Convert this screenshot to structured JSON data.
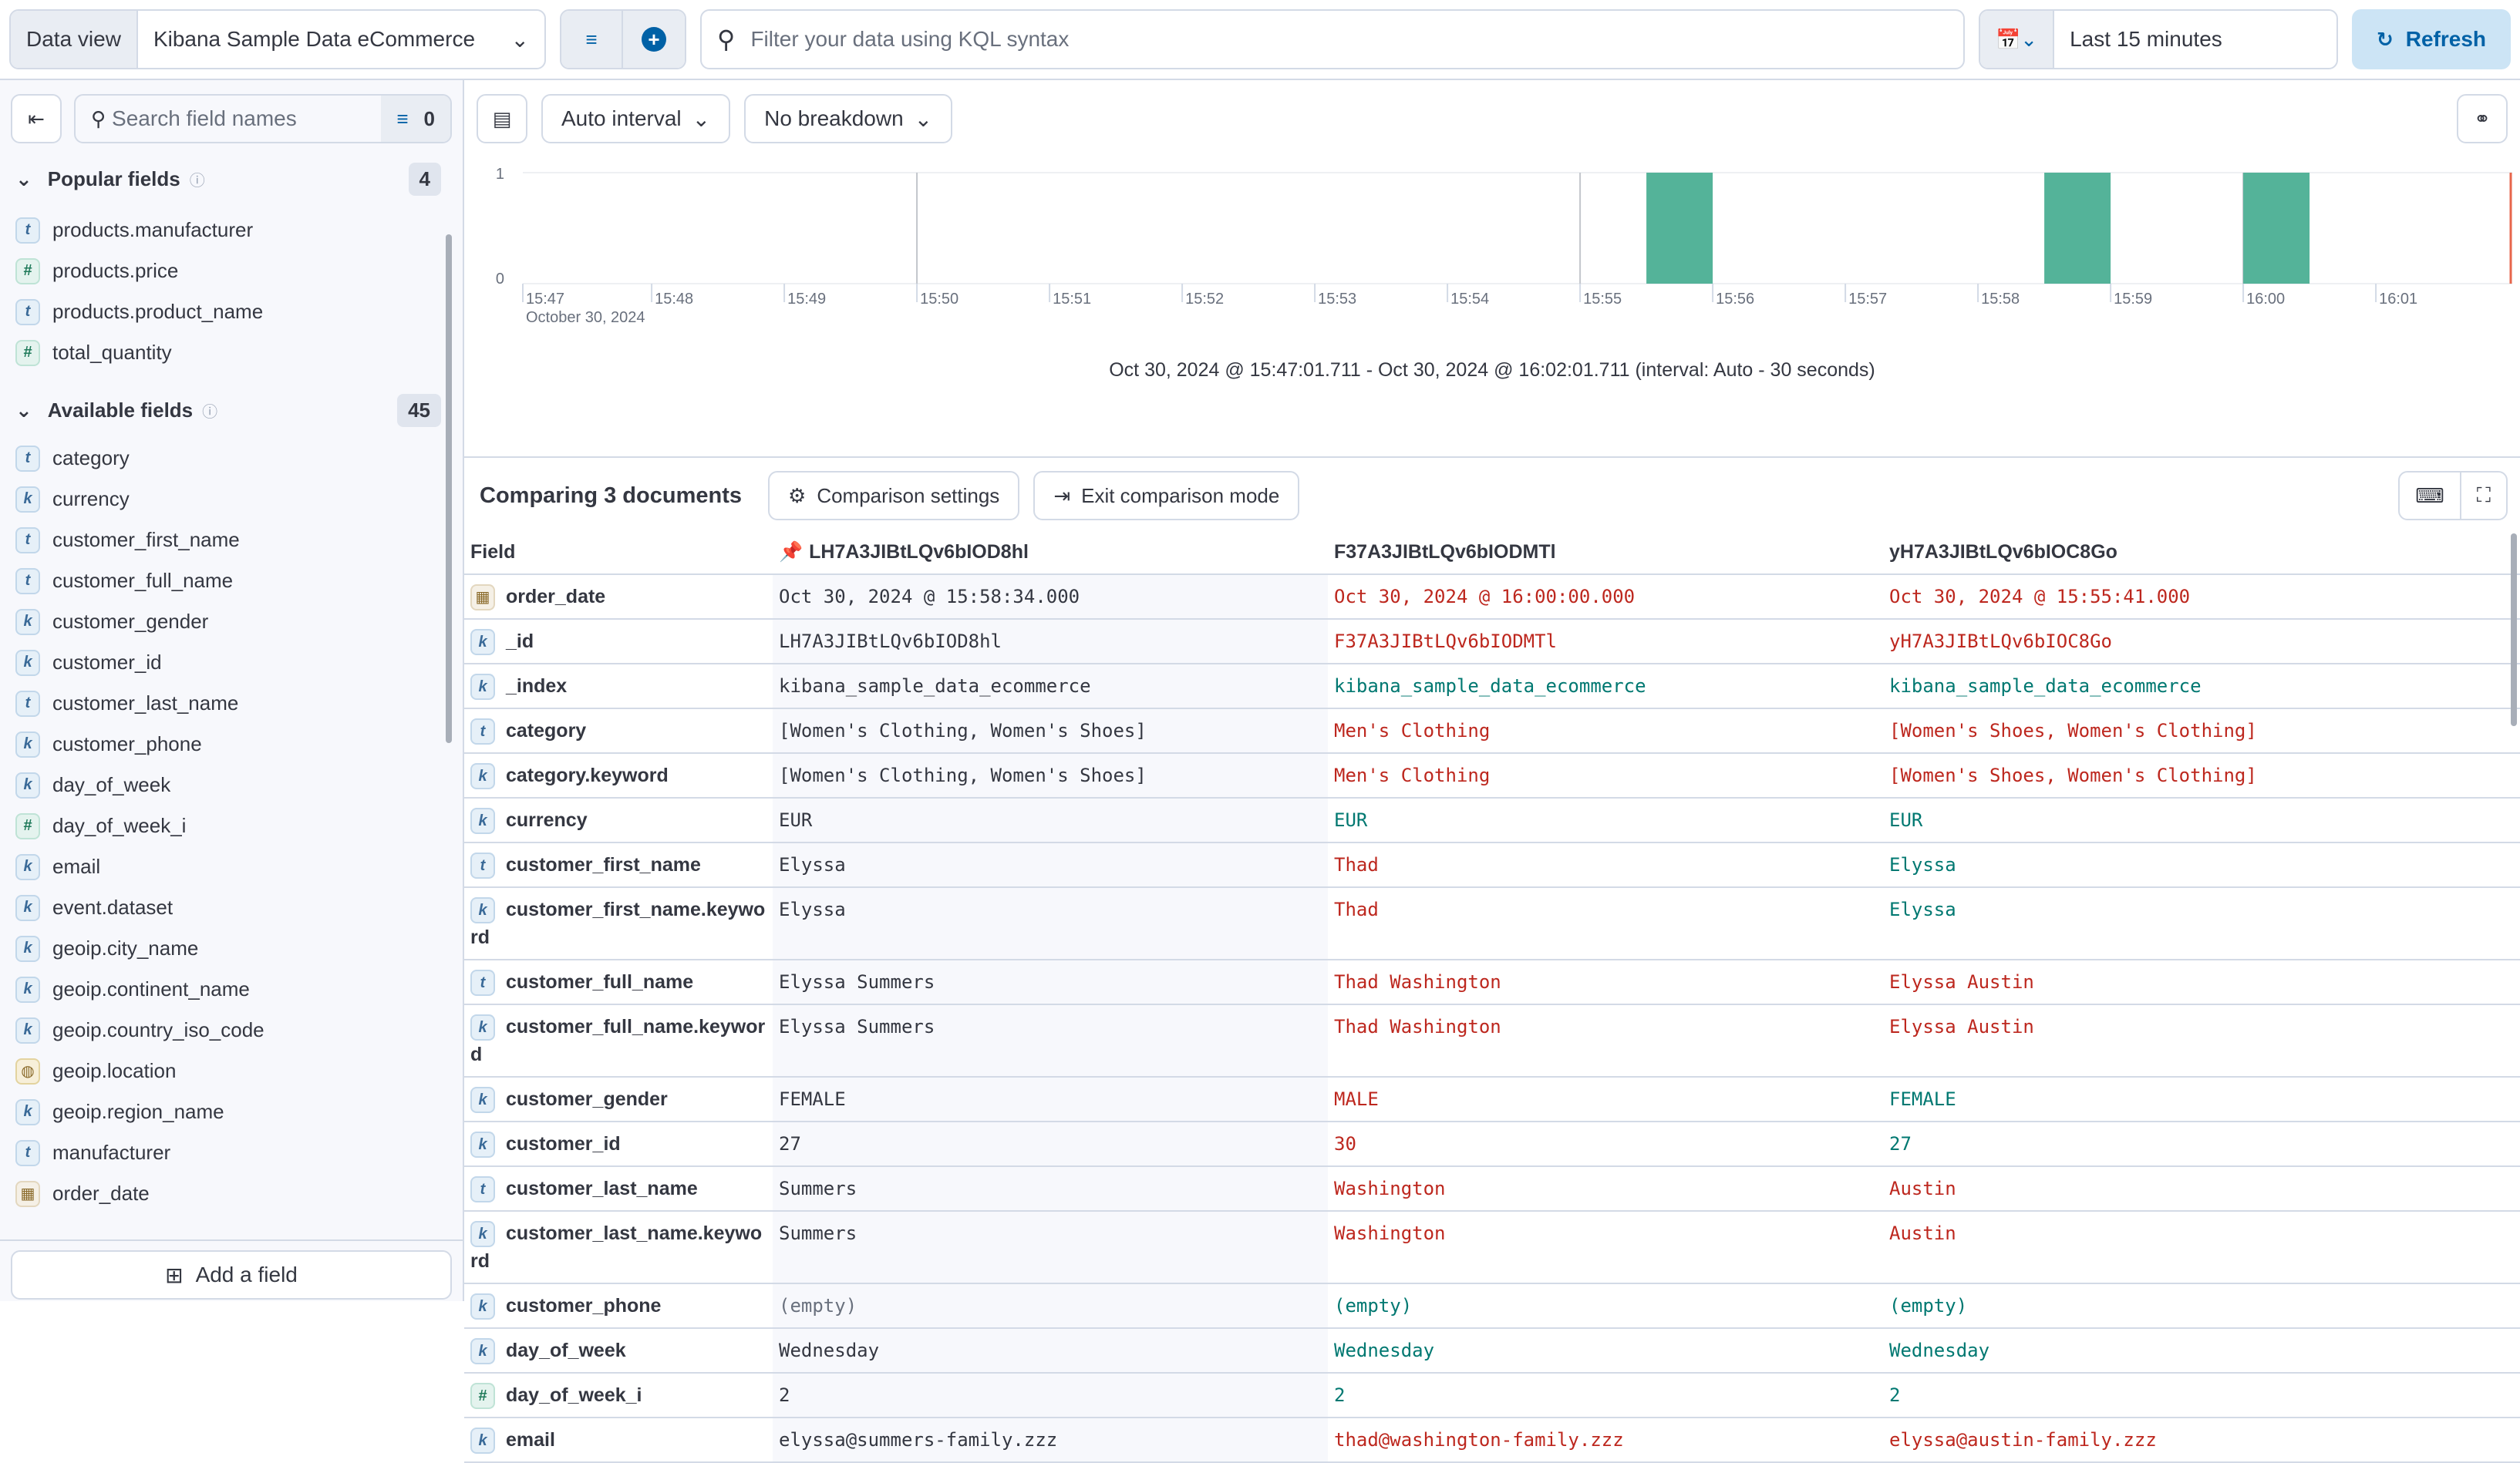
{
  "topbar": {
    "data_view_label": "Data view",
    "data_view_value": "Kibana Sample Data eCommerce",
    "query_placeholder": "Filter your data using KQL syntax",
    "time_range": "Last 15 minutes",
    "refresh_label": "Refresh",
    "accent": "#0061a6"
  },
  "sidebar": {
    "search_placeholder": "Search field names",
    "filter_count": "0",
    "popular": {
      "title": "Popular fields",
      "count": "4",
      "items": [
        {
          "type": "t",
          "name": "products.manufacturer"
        },
        {
          "type": "n",
          "name": "products.price"
        },
        {
          "type": "t",
          "name": "products.product_name"
        },
        {
          "type": "n",
          "name": "total_quantity"
        }
      ]
    },
    "available": {
      "title": "Available fields",
      "count": "45",
      "items": [
        {
          "type": "t",
          "name": "category"
        },
        {
          "type": "k",
          "name": "currency"
        },
        {
          "type": "t",
          "name": "customer_first_name"
        },
        {
          "type": "t",
          "name": "customer_full_name"
        },
        {
          "type": "k",
          "name": "customer_gender"
        },
        {
          "type": "k",
          "name": "customer_id"
        },
        {
          "type": "t",
          "name": "customer_last_name"
        },
        {
          "type": "k",
          "name": "customer_phone"
        },
        {
          "type": "k",
          "name": "day_of_week"
        },
        {
          "type": "n",
          "name": "day_of_week_i"
        },
        {
          "type": "k",
          "name": "email"
        },
        {
          "type": "k",
          "name": "event.dataset"
        },
        {
          "type": "k",
          "name": "geoip.city_name"
        },
        {
          "type": "k",
          "name": "geoip.continent_name"
        },
        {
          "type": "k",
          "name": "geoip.country_iso_code"
        },
        {
          "type": "g",
          "name": "geoip.location"
        },
        {
          "type": "k",
          "name": "geoip.region_name"
        },
        {
          "type": "t",
          "name": "manufacturer"
        },
        {
          "type": "d",
          "name": "order_date"
        }
      ]
    },
    "add_field_label": "Add a field"
  },
  "chart_toolbar": {
    "interval": "Auto interval",
    "breakdown": "No breakdown"
  },
  "chart_data": {
    "type": "bar",
    "x_range": [
      "15:47:01.711",
      "16:02:01.711"
    ],
    "ylim": [
      0,
      1
    ],
    "y_ticks": [
      "0",
      "1"
    ],
    "x_ticks": [
      "15:47",
      "15:48",
      "15:49",
      "15:50",
      "15:51",
      "15:52",
      "15:53",
      "15:54",
      "15:55",
      "15:56",
      "15:57",
      "15:58",
      "15:59",
      "16:00",
      "16:01"
    ],
    "x_sublabel": "October 30, 2024",
    "interval_seconds": 30,
    "bars": [
      {
        "x": "15:55:30",
        "value": 1
      },
      {
        "x": "15:58:30",
        "value": 1
      },
      {
        "x": "16:00:00",
        "value": 1
      }
    ],
    "bar_color": "#54b399",
    "now_marker_color": "#e7664c",
    "caption": "Oct 30, 2024 @ 15:47:01.711 - Oct 30, 2024 @ 16:02:01.711 (interval: Auto - 30 seconds)"
  },
  "compare": {
    "title": "Comparing 3 documents",
    "settings_label": "Comparison settings",
    "exit_label": "Exit comparison mode",
    "headers": [
      "Field",
      "LH7A3JIBtLQv6bIOD8hl",
      "F37A3JIBtLQv6bIODMTl",
      "yH7A3JIBtLQv6bIOC8Go"
    ],
    "rows": [
      {
        "type": "d",
        "field": "order_date",
        "v": [
          "Oct 30, 2024 @ 15:58:34.000",
          "Oct 30, 2024 @ 16:00:00.000",
          "Oct 30, 2024 @ 15:55:41.000"
        ],
        "s": [
          "red",
          "red"
        ]
      },
      {
        "type": "k",
        "field": "_id",
        "v": [
          "LH7A3JIBtLQv6bIOD8hl",
          "F37A3JIBtLQv6bIODMTl",
          "yH7A3JIBtLQv6bIOC8Go"
        ],
        "s": [
          "red",
          "red"
        ]
      },
      {
        "type": "k",
        "field": "_index",
        "v": [
          "kibana_sample_data_ecommerce",
          "kibana_sample_data_ecommerce",
          "kibana_sample_data_ecommerce"
        ],
        "s": [
          "grn",
          "grn"
        ]
      },
      {
        "type": "t",
        "field": "category",
        "v": [
          "[Women's Clothing, Women's Shoes]",
          "Men's Clothing",
          "[Women's Shoes, Women's Clothing]"
        ],
        "s": [
          "red",
          "red"
        ]
      },
      {
        "type": "k",
        "field": "category.keyword",
        "v": [
          "[Women's Clothing, Women's Shoes]",
          "Men's Clothing",
          "[Women's Shoes, Women's Clothing]"
        ],
        "s": [
          "red",
          "red"
        ]
      },
      {
        "type": "k",
        "field": "currency",
        "v": [
          "EUR",
          "EUR",
          "EUR"
        ],
        "s": [
          "grn",
          "grn"
        ]
      },
      {
        "type": "t",
        "field": "customer_first_name",
        "v": [
          "Elyssa",
          "Thad",
          "Elyssa"
        ],
        "s": [
          "red",
          "grn"
        ]
      },
      {
        "type": "k",
        "field": "customer_first_name.keyword",
        "v": [
          "Elyssa",
          "Thad",
          "Elyssa"
        ],
        "s": [
          "red",
          "grn"
        ]
      },
      {
        "type": "t",
        "field": "customer_full_name",
        "v": [
          "Elyssa Summers",
          "Thad Washington",
          "Elyssa Austin"
        ],
        "s": [
          "red",
          "red"
        ]
      },
      {
        "type": "k",
        "field": "customer_full_name.keyword",
        "v": [
          "Elyssa Summers",
          "Thad Washington",
          "Elyssa Austin"
        ],
        "s": [
          "red",
          "red"
        ]
      },
      {
        "type": "k",
        "field": "customer_gender",
        "v": [
          "FEMALE",
          "MALE",
          "FEMALE"
        ],
        "s": [
          "red",
          "grn"
        ]
      },
      {
        "type": "k",
        "field": "customer_id",
        "v": [
          "27",
          "30",
          "27"
        ],
        "s": [
          "red",
          "grn"
        ]
      },
      {
        "type": "t",
        "field": "customer_last_name",
        "v": [
          "Summers",
          "Washington",
          "Austin"
        ],
        "s": [
          "red",
          "red"
        ]
      },
      {
        "type": "k",
        "field": "customer_last_name.keyword",
        "v": [
          "Summers",
          "Washington",
          "Austin"
        ],
        "s": [
          "red",
          "red"
        ]
      },
      {
        "type": "k",
        "field": "customer_phone",
        "v": [
          "(empty)",
          "(empty)",
          "(empty)"
        ],
        "s": [
          "grn",
          "grn"
        ]
      },
      {
        "type": "k",
        "field": "day_of_week",
        "v": [
          "Wednesday",
          "Wednesday",
          "Wednesday"
        ],
        "s": [
          "grn",
          "grn"
        ]
      },
      {
        "type": "n",
        "field": "day_of_week_i",
        "v": [
          "2",
          "2",
          "2"
        ],
        "s": [
          "grn",
          "grn"
        ]
      },
      {
        "type": "k",
        "field": "email",
        "v": [
          "elyssa@summers-family.zzz",
          "thad@washington-family.zzz",
          "elyssa@austin-family.zzz"
        ],
        "s": [
          "red",
          "red"
        ]
      }
    ]
  }
}
